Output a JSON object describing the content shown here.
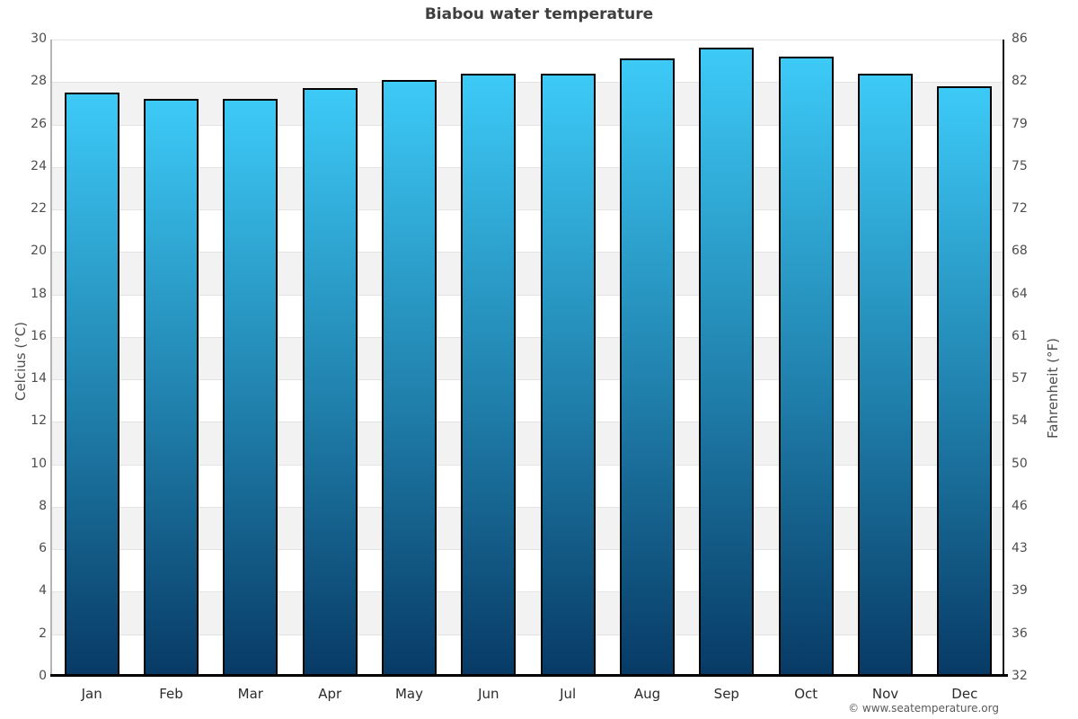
{
  "title": "Biabou water temperature",
  "chart_data": {
    "type": "bar",
    "title": "Biabou water temperature",
    "categories": [
      "Jan",
      "Feb",
      "Mar",
      "Apr",
      "May",
      "Jun",
      "Jul",
      "Aug",
      "Sep",
      "Oct",
      "Nov",
      "Dec"
    ],
    "values": [
      27.5,
      27.2,
      27.2,
      27.7,
      28.1,
      28.4,
      28.4,
      29.1,
      29.6,
      29.2,
      28.4,
      27.8
    ],
    "xlabel": "",
    "ylabel_left": "Celcius (°C)",
    "ylabel_right": "Fahrenheit (°F)",
    "ylim": [
      0,
      30
    ],
    "yticks_celsius": [
      30,
      28,
      26,
      24,
      22,
      20,
      18,
      16,
      14,
      12,
      10,
      8,
      6,
      4,
      2,
      0
    ],
    "yticks_fahrenheit": [
      "86",
      "82",
      "79",
      "75",
      "72",
      "68",
      "64",
      "61",
      "57",
      "54",
      "50",
      "46",
      "43",
      "39",
      "36",
      "32"
    ],
    "grid": "horizontal gridlines every 2°C with alternating white/gray bands",
    "legend": "none",
    "bar_style": "vertical gradient light blue top to dark navy bottom, black outline"
  },
  "footer": {
    "copyright": "© www.seatemperature.org"
  },
  "colors": {
    "bar_top": "#3dcaf7",
    "bar_mid": "#2182ae",
    "bar_bottom": "#073a65",
    "bar_border": "#000000",
    "band_gray": "#f2f2f2",
    "band_white": "#ffffff",
    "gridline": "#e3e3e3",
    "axis_left_spine": "#b4b4b4",
    "axis_right_spine": "#111111",
    "axis_bottom_spine": "#000000",
    "title_text": "#3f3f3f",
    "tick_text": "#4d4d4d",
    "month_text": "#2b2b2b",
    "copyright_text": "#5a5a5a"
  }
}
